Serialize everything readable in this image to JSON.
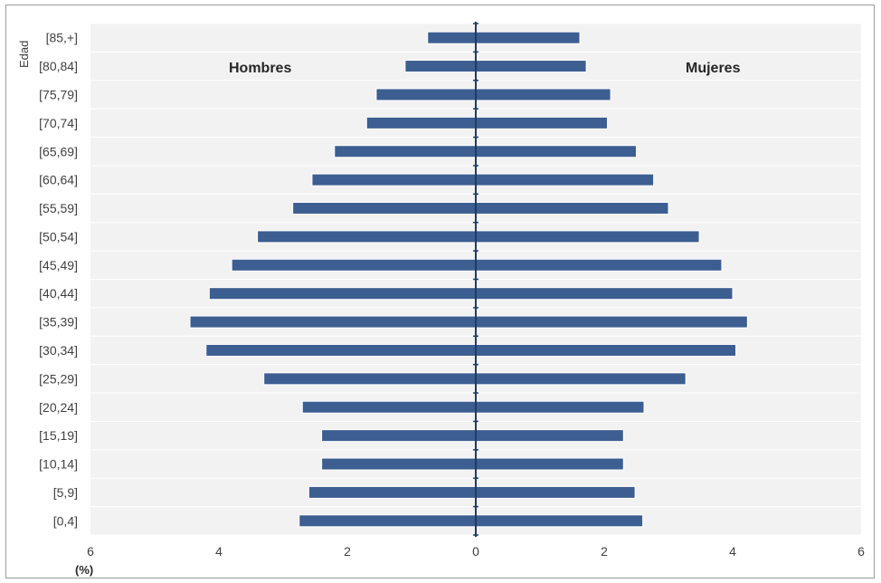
{
  "chart_data": {
    "type": "bar",
    "orientation": "horizontal",
    "subtype": "population-pyramid",
    "title": "",
    "ylabel": "Edad",
    "xlabel": "(%)",
    "xlim": [
      -6,
      6
    ],
    "x_ticks": [
      -6,
      -4,
      -2,
      0,
      2,
      4,
      6
    ],
    "x_tick_labels": [
      "6",
      "4",
      "2",
      "0",
      "2",
      "4",
      "6"
    ],
    "grid": true,
    "annotations": {
      "left": "Hombres",
      "right": "Mujeres"
    },
    "categories": [
      "[0,4]",
      "[5,9]",
      "[10,14]",
      "[15,19]",
      "[20,24]",
      "[25,29]",
      "[30,34]",
      "[35,39]",
      "[40,44]",
      "[45,49]",
      "[50,54]",
      "[55,59]",
      "[60,64]",
      "[65,69]",
      "[70,74]",
      "[75,79]",
      "[80,84]",
      "[85,+]"
    ],
    "series": [
      {
        "name": "Hombres",
        "side": "left",
        "values": [
          2.75,
          2.6,
          2.4,
          2.4,
          2.7,
          3.3,
          4.2,
          4.45,
          4.15,
          3.8,
          3.4,
          2.85,
          2.55,
          2.2,
          1.7,
          1.55,
          1.1,
          0.75
        ]
      },
      {
        "name": "Mujeres",
        "side": "right",
        "values": [
          2.6,
          2.48,
          2.3,
          2.3,
          2.62,
          3.27,
          4.05,
          4.23,
          4.0,
          3.83,
          3.48,
          3.0,
          2.77,
          2.5,
          2.05,
          2.1,
          1.72,
          1.62
        ]
      }
    ],
    "colors": {
      "bar": "#3c5e91",
      "bar_edge": "#1f3b66",
      "plot_bg": "#f2f2f2",
      "grid": "#ffffff",
      "axis": "#1f3b66"
    }
  }
}
